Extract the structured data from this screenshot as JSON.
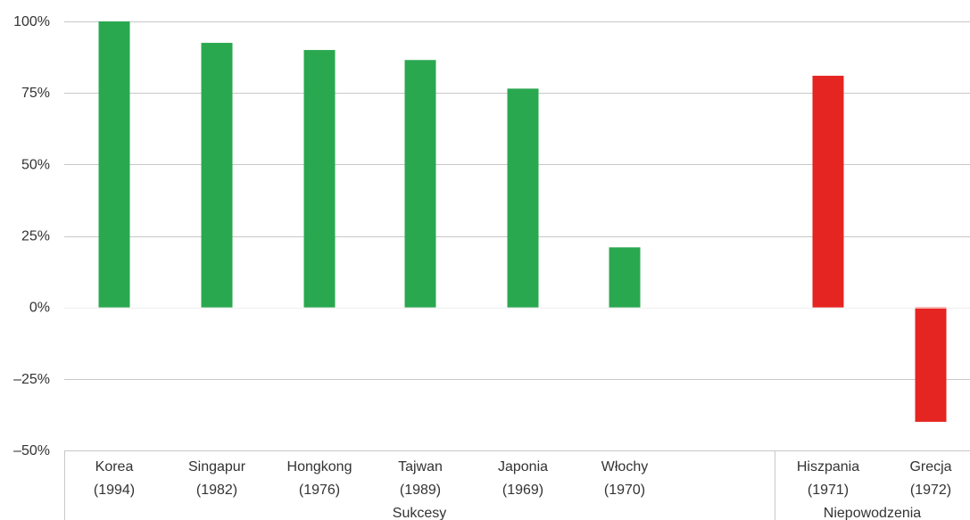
{
  "chart_data": {
    "type": "bar",
    "title": "",
    "xlabel": "",
    "ylabel": "",
    "ylim": [
      -50,
      100
    ],
    "yticks": [
      100,
      75,
      50,
      25,
      0,
      -25,
      -50
    ],
    "ytick_labels": [
      "100%",
      "75%",
      "50%",
      "25%",
      "0%",
      "–25%",
      "–50%"
    ],
    "grid": true,
    "legend": "none",
    "categories": [
      {
        "name": "Korea",
        "year": "(1994)",
        "value": 100,
        "group": "Sukcesy"
      },
      {
        "name": "Singapur",
        "year": "(1982)",
        "value": 92.5,
        "group": "Sukcesy"
      },
      {
        "name": "Hongkong",
        "year": "(1976)",
        "value": 90,
        "group": "Sukcesy"
      },
      {
        "name": "Tajwan",
        "year": "(1989)",
        "value": 86.5,
        "group": "Sukcesy"
      },
      {
        "name": "Japonia",
        "year": "(1969)",
        "value": 76.5,
        "group": "Sukcesy"
      },
      {
        "name": "Włochy",
        "year": "(1970)",
        "value": 21,
        "group": "Sukcesy"
      },
      {
        "name": "Hiszpania",
        "year": "(1971)",
        "value": 81,
        "group": "Niepowodzenia"
      },
      {
        "name": "Grecja",
        "year": "(1972)",
        "value": -40,
        "group": "Niepowodzenia"
      }
    ],
    "groups": [
      {
        "label": "Sukcesy",
        "color": "#2aa84f"
      },
      {
        "label": "Niepowodzenia",
        "color": "#e52521"
      }
    ]
  }
}
